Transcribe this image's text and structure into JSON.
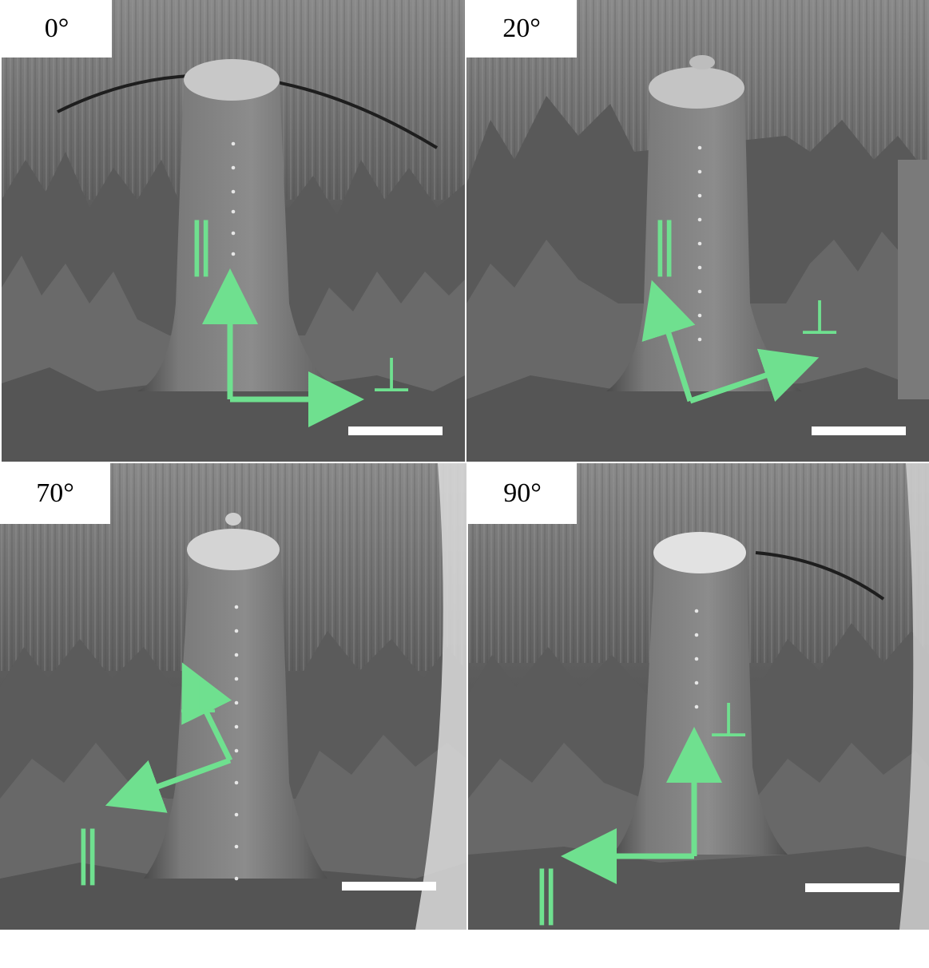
{
  "panels": [
    {
      "id": "p0",
      "angle_label": "0°",
      "parallel_symbol": "∥",
      "perp_symbol": "⊥"
    },
    {
      "id": "p20",
      "angle_label": "20°",
      "parallel_symbol": "∥",
      "perp_symbol": "⊥"
    },
    {
      "id": "p70",
      "angle_label": "70°",
      "parallel_symbol": "∥",
      "perp_symbol": "⊥"
    },
    {
      "id": "p90",
      "angle_label": "90°",
      "parallel_symbol": "∥",
      "perp_symbol": "⊥"
    }
  ],
  "colors": {
    "arrow": "#6fe08f",
    "scalebar": "#ffffff",
    "label_bg": "#ffffff",
    "sem_bg": "#3c3c3c"
  }
}
